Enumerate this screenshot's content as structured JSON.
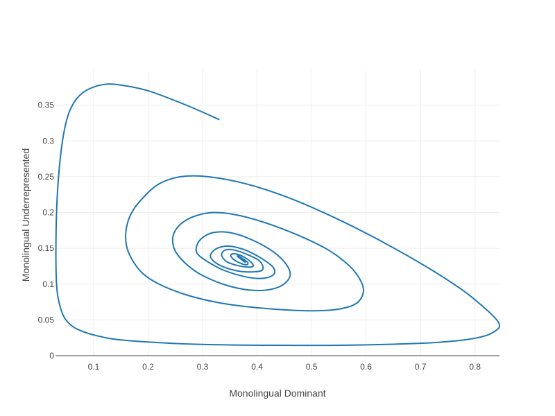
{
  "chart_data": {
    "type": "line",
    "title": "",
    "xlabel": "Monolingual Dominant",
    "ylabel": "Monolingual Underrepresented",
    "xlim": [
      0.03,
      0.845
    ],
    "ylim": [
      0,
      0.4
    ],
    "x_ticks": [
      "0.1",
      "0.2",
      "0.3",
      "0.4",
      "0.5",
      "0.6",
      "0.7",
      "0.8"
    ],
    "y_ticks": [
      "0",
      "0.05",
      "0.1",
      "0.15",
      "0.2",
      "0.25",
      "0.3",
      "0.35"
    ],
    "grid": true,
    "legend": "none",
    "colors": {
      "series": "#1f77b4",
      "grid": "#eeeeee",
      "axis": "#444444",
      "text": "#444444"
    },
    "series": [
      {
        "x": [
          0.33,
          0.27,
          0.2,
          0.15,
          0.12,
          0.09,
          0.07,
          0.055,
          0.045,
          0.038,
          0.033,
          0.031,
          0.031,
          0.033,
          0.038,
          0.045,
          0.055,
          0.07,
          0.1,
          0.15,
          0.25,
          0.35,
          0.45,
          0.55,
          0.65,
          0.72,
          0.78,
          0.82,
          0.84,
          0.845,
          0.84,
          0.82,
          0.78,
          0.72,
          0.64,
          0.55,
          0.46,
          0.38,
          0.31,
          0.26,
          0.22,
          0.19,
          0.17,
          0.16,
          0.16,
          0.17,
          0.19,
          0.22,
          0.27,
          0.33,
          0.4,
          0.48,
          0.54,
          0.58,
          0.595,
          0.59,
          0.57,
          0.53,
          0.47,
          0.41,
          0.36,
          0.32,
          0.29,
          0.265,
          0.25,
          0.245,
          0.25,
          0.27,
          0.3,
          0.35,
          0.4,
          0.44,
          0.46,
          0.455,
          0.43,
          0.39,
          0.35,
          0.32,
          0.3,
          0.29,
          0.29,
          0.31,
          0.34,
          0.38,
          0.41,
          0.43,
          0.43,
          0.41,
          0.38,
          0.35,
          0.33,
          0.318,
          0.315,
          0.33,
          0.36,
          0.39,
          0.41,
          0.405,
          0.38,
          0.355,
          0.34,
          0.335,
          0.345,
          0.37,
          0.39,
          0.392,
          0.38,
          0.362,
          0.352,
          0.356,
          0.37,
          0.381,
          0.383,
          0.375,
          0.366,
          0.364,
          0.37,
          0.377,
          0.378,
          0.373
        ],
        "y": [
          0.33,
          0.35,
          0.37,
          0.378,
          0.379,
          0.372,
          0.36,
          0.34,
          0.31,
          0.27,
          0.22,
          0.17,
          0.12,
          0.09,
          0.07,
          0.055,
          0.045,
          0.037,
          0.029,
          0.022,
          0.017,
          0.015,
          0.0145,
          0.0145,
          0.016,
          0.018,
          0.022,
          0.028,
          0.036,
          0.042,
          0.05,
          0.065,
          0.09,
          0.12,
          0.155,
          0.19,
          0.22,
          0.24,
          0.25,
          0.25,
          0.24,
          0.22,
          0.2,
          0.178,
          0.155,
          0.135,
          0.115,
          0.1,
          0.085,
          0.074,
          0.067,
          0.063,
          0.064,
          0.072,
          0.088,
          0.105,
          0.125,
          0.148,
          0.17,
          0.187,
          0.197,
          0.2,
          0.196,
          0.187,
          0.175,
          0.162,
          0.146,
          0.128,
          0.112,
          0.097,
          0.091,
          0.096,
          0.11,
          0.126,
          0.145,
          0.162,
          0.172,
          0.172,
          0.165,
          0.155,
          0.143,
          0.131,
          0.119,
          0.11,
          0.108,
          0.113,
          0.123,
          0.135,
          0.147,
          0.153,
          0.151,
          0.145,
          0.137,
          0.127,
          0.119,
          0.117,
          0.12,
          0.132,
          0.142,
          0.148,
          0.147,
          0.14,
          0.131,
          0.125,
          0.124,
          0.128,
          0.136,
          0.142,
          0.141,
          0.135,
          0.129,
          0.127,
          0.13,
          0.135,
          0.139,
          0.139,
          0.135,
          0.131,
          0.131,
          0.134
        ]
      }
    ]
  }
}
